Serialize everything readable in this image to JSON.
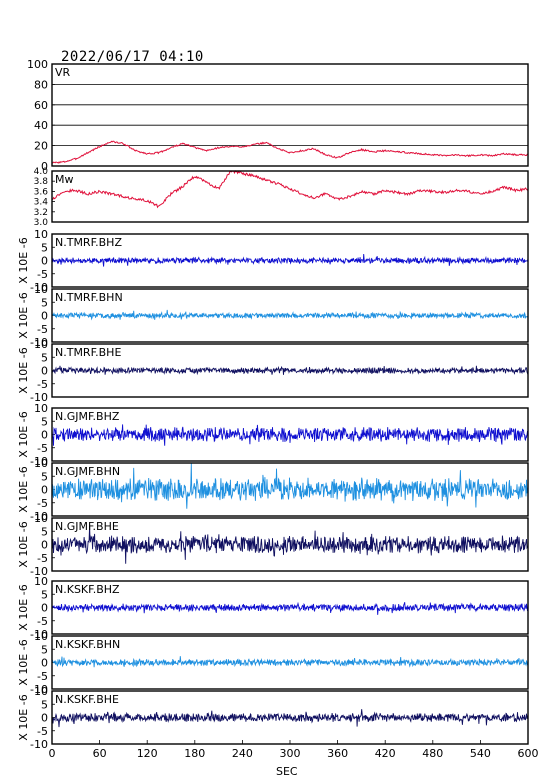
{
  "title": "2022/06/17 04:10",
  "chart_data": [
    {
      "type": "line",
      "label": "VR",
      "color": "#e0103a",
      "ylim": [
        0,
        100
      ],
      "yticks": [
        0,
        20,
        40,
        60,
        80,
        100
      ],
      "grid": true,
      "x": [
        0,
        15,
        30,
        45,
        60,
        75,
        90,
        105,
        120,
        135,
        150,
        165,
        180,
        195,
        210,
        225,
        240,
        255,
        270,
        285,
        300,
        315,
        330,
        345,
        360,
        375,
        390,
        405,
        420,
        435,
        450,
        465,
        480,
        495,
        510,
        525,
        540,
        555,
        570,
        585,
        600
      ],
      "values": [
        3,
        4,
        7,
        13,
        19,
        24,
        22,
        15,
        12,
        13,
        18,
        22,
        18,
        15,
        18,
        19,
        19,
        21,
        23,
        17,
        13,
        15,
        17,
        11,
        8,
        13,
        16,
        14,
        15,
        14,
        13,
        12,
        11,
        10,
        11,
        10,
        11,
        10,
        12,
        11,
        11
      ]
    },
    {
      "type": "line",
      "label": "Mw",
      "color": "#e0103a",
      "ylim": [
        3.0,
        4.0
      ],
      "yticks": [
        3.0,
        3.2,
        3.4,
        3.6,
        3.8,
        4.0
      ],
      "grid": false,
      "x": [
        0,
        15,
        30,
        45,
        60,
        75,
        90,
        105,
        120,
        135,
        150,
        165,
        180,
        195,
        210,
        225,
        240,
        255,
        270,
        285,
        300,
        315,
        330,
        345,
        360,
        375,
        390,
        405,
        420,
        435,
        450,
        465,
        480,
        495,
        510,
        525,
        540,
        555,
        570,
        585,
        600
      ],
      "values": [
        3.45,
        3.6,
        3.62,
        3.55,
        3.6,
        3.55,
        3.5,
        3.45,
        3.42,
        3.3,
        3.55,
        3.7,
        3.9,
        3.78,
        3.65,
        4.0,
        3.95,
        3.9,
        3.82,
        3.75,
        3.65,
        3.55,
        3.48,
        3.55,
        3.45,
        3.5,
        3.6,
        3.55,
        3.62,
        3.58,
        3.55,
        3.62,
        3.6,
        3.58,
        3.62,
        3.6,
        3.55,
        3.6,
        3.68,
        3.62,
        3.65
      ]
    },
    {
      "type": "line",
      "label": "N.TMRF.BHZ",
      "ylabel": "X 10E -6",
      "color": "#1010d0",
      "ylim": [
        -10,
        10
      ],
      "yticks": [
        -10,
        -5,
        0,
        5,
        10
      ],
      "amplitude": 0.9,
      "seed": 11
    },
    {
      "type": "line",
      "label": "N.TMRF.BHN",
      "ylabel": "X 10E -6",
      "color": "#1e90e0",
      "ylim": [
        -10,
        10
      ],
      "yticks": [
        -10,
        -5,
        0,
        5,
        10
      ],
      "amplitude": 0.8,
      "seed": 23
    },
    {
      "type": "line",
      "label": "N.TMRF.BHE",
      "ylabel": "X 10E -6",
      "color": "#101060",
      "ylim": [
        -10,
        10
      ],
      "yticks": [
        -10,
        -5,
        0,
        5,
        10
      ],
      "amplitude": 0.9,
      "seed": 37
    },
    {
      "type": "line",
      "label": "N.GJMF.BHZ",
      "ylabel": "X 10E -6",
      "color": "#1010d0",
      "ylim": [
        -10,
        10
      ],
      "yticks": [
        -10,
        -5,
        0,
        5,
        10
      ],
      "amplitude": 2.2,
      "seed": 41
    },
    {
      "type": "line",
      "label": "N.GJMF.BHN",
      "ylabel": "X 10E -6",
      "color": "#1e90e0",
      "ylim": [
        -10,
        10
      ],
      "yticks": [
        -10,
        -5,
        0,
        5,
        10
      ],
      "amplitude": 3.5,
      "seed": 53
    },
    {
      "type": "line",
      "label": "N.GJMF.BHE",
      "ylabel": "X 10E -6",
      "color": "#101060",
      "ylim": [
        -10,
        10
      ],
      "yticks": [
        -10,
        -5,
        0,
        5,
        10
      ],
      "amplitude": 2.6,
      "seed": 67
    },
    {
      "type": "line",
      "label": "N.KSKF.BHZ",
      "ylabel": "X 10E -6",
      "color": "#1010d0",
      "ylim": [
        -10,
        10
      ],
      "yticks": [
        -10,
        -5,
        0,
        5,
        10
      ],
      "amplitude": 1.1,
      "seed": 71
    },
    {
      "type": "line",
      "label": "N.KSKF.BHN",
      "ylabel": "X 10E -6",
      "color": "#1e90e0",
      "ylim": [
        -10,
        10
      ],
      "yticks": [
        -10,
        -5,
        0,
        5,
        10
      ],
      "amplitude": 1.0,
      "seed": 83
    },
    {
      "type": "line",
      "label": "N.KSKF.BHE",
      "ylabel": "X 10E -6",
      "color": "#101060",
      "ylim": [
        -10,
        10
      ],
      "yticks": [
        -10,
        -5,
        0,
        5,
        10
      ],
      "amplitude": 1.3,
      "seed": 97
    }
  ],
  "xaxis": {
    "label": "SEC",
    "xlim": [
      0,
      600
    ],
    "ticks": [
      0,
      60,
      120,
      180,
      240,
      300,
      360,
      420,
      480,
      540,
      600
    ]
  }
}
